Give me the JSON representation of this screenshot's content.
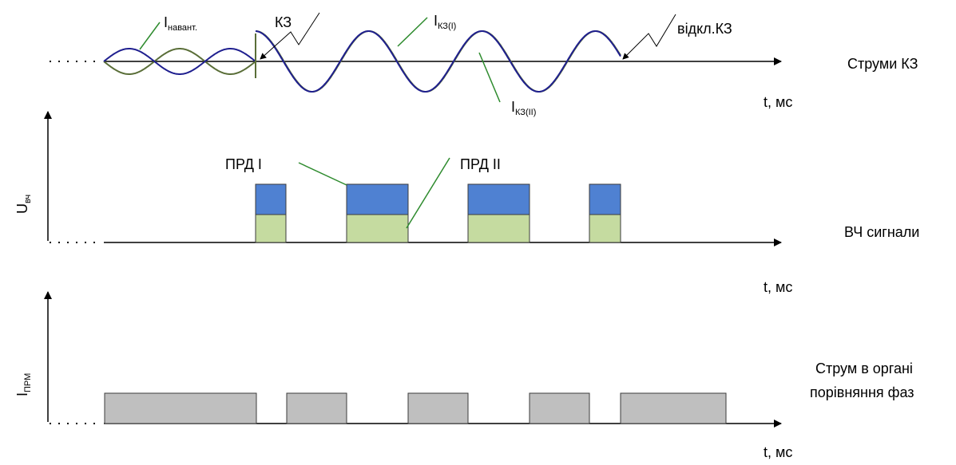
{
  "panels": {
    "currents": {
      "side_label": "Струми КЗ",
      "t_label": "t, мс",
      "load_current": {
        "main": "I",
        "sub": "навант."
      },
      "fault_current_1": {
        "main": "I",
        "sub": "КЗ(I)"
      },
      "fault_current_2": {
        "main": "I",
        "sub": "КЗ(II)"
      },
      "fault_start": "КЗ",
      "fault_clear": "відкл.КЗ"
    },
    "hf_signals": {
      "side_label": "ВЧ сигнали",
      "t_label": "t, мс",
      "y_axis": {
        "main": "U",
        "sub": "вч"
      },
      "transmitter_1": "ПРД I",
      "transmitter_2": "ПРД II"
    },
    "comparison": {
      "side_label_line1": "Струм в органі",
      "side_label_line2": "порівняння фаз",
      "t_label": "t, мс",
      "y_axis": {
        "main": "I",
        "sub": "ПРМ"
      }
    }
  },
  "colors": {
    "axis": "#000000",
    "wave_blue": "#1f1f8f",
    "wave_olive": "#5a6e38",
    "leader_green": "#2e8b2e",
    "pulse_blue": "#4f81d2",
    "pulse_green": "#c5dba0",
    "pulse_gray": "#bfbfbf",
    "pulse_border": "#3b3b3b"
  },
  "chart_data": {
    "type": "timing",
    "hf_pulses": [
      {
        "start": 320,
        "end": 358
      },
      {
        "start": 434,
        "end": 511
      },
      {
        "start": 586,
        "end": 663
      },
      {
        "start": 738,
        "end": 777
      }
    ],
    "comparison_pulses": [
      {
        "start": 131,
        "end": 321
      },
      {
        "start": 359,
        "end": 434
      },
      {
        "start": 511,
        "end": 586
      },
      {
        "start": 663,
        "end": 738
      },
      {
        "start": 777,
        "end": 909
      }
    ],
    "fault_start_t": 320,
    "fault_clear_t": 777
  }
}
